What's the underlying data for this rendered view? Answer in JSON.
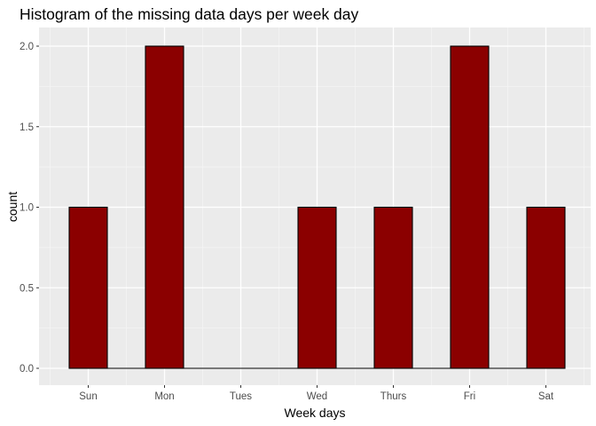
{
  "chart_data": {
    "type": "bar",
    "title": "Histogram of the missing data days per week day",
    "xlabel": "Week days",
    "ylabel": "count",
    "categories": [
      "Sun",
      "Mon",
      "Tues",
      "Wed",
      "Thurs",
      "Fri",
      "Sat"
    ],
    "values": [
      1,
      2,
      0,
      1,
      1,
      2,
      1
    ],
    "ylim": [
      0,
      2
    ],
    "yticks": [
      "0.0",
      "0.5",
      "1.0",
      "1.5",
      "2.0"
    ],
    "grid": true,
    "legend": "none",
    "colors": {
      "bar_fill": "#8b0000",
      "bar_outline": "#000000",
      "panel_background": "#ebebeb",
      "grid_major": "#ffffff",
      "grid_minor": "#f5f5f5"
    }
  }
}
